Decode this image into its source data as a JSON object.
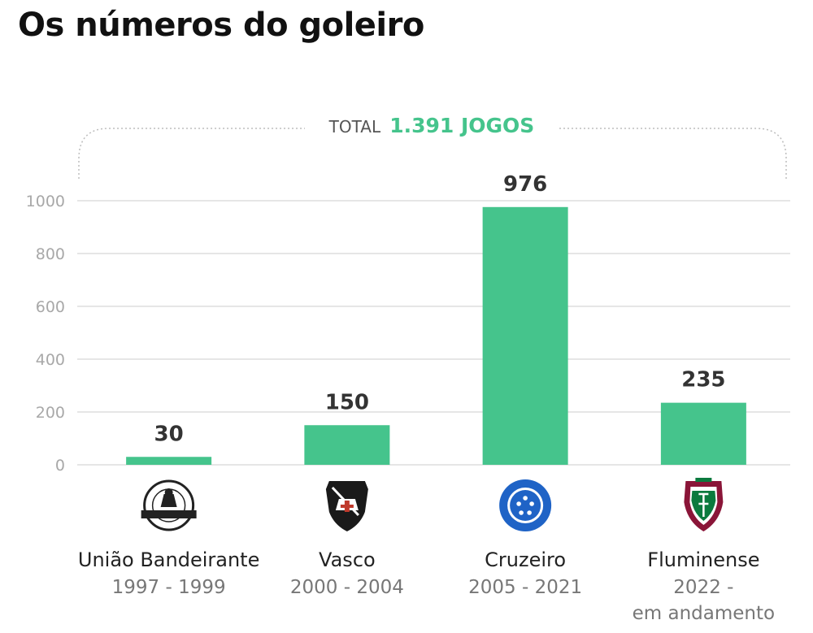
{
  "title": "Os números do goleiro",
  "total": {
    "label": "TOTAL",
    "value": "1.391 JOGOS"
  },
  "colors": {
    "bar": "#45c48c",
    "accent": "#45c48c",
    "grid": "#d6d6d6"
  },
  "chart_data": {
    "type": "bar",
    "categories": [
      "União Bandeirante",
      "Vasco",
      "Cruzeiro",
      "Fluminense"
    ],
    "periods": [
      [
        "1997 - 1999"
      ],
      [
        "2000 - 2004"
      ],
      [
        "2005 - 2021"
      ],
      [
        "2022 -",
        "em andamento"
      ]
    ],
    "values": [
      30,
      150,
      976,
      235
    ],
    "value_labels": [
      "30",
      "150",
      "976",
      "235"
    ],
    "yticks": [
      0,
      200,
      400,
      600,
      800,
      1000
    ],
    "ylim": [
      0,
      1000
    ],
    "grid": true,
    "logos": [
      "uniao-bandeirante-crest-icon",
      "vasco-crest-icon",
      "cruzeiro-crest-icon",
      "fluminense-crest-icon"
    ]
  }
}
